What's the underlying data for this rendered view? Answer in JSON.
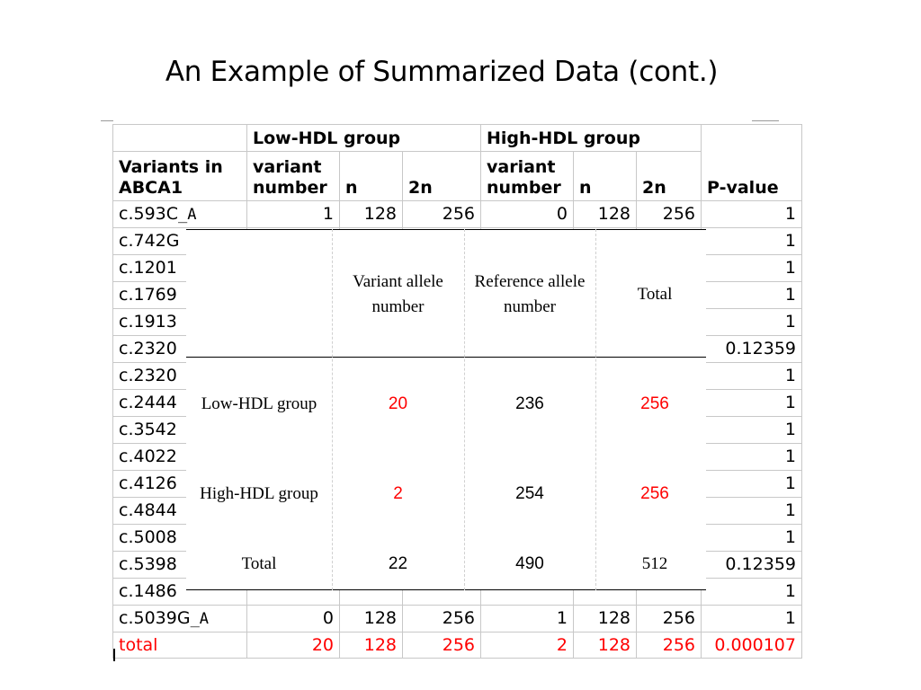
{
  "slide": {
    "title": "An Example of Summarized Data (cont.)"
  },
  "sheet": {
    "group_low": "Low-HDL group",
    "group_high": "High-HDL group",
    "col_variants": "Variants in ABCA1",
    "col_variant_number": "variant number",
    "col_n": "n",
    "col_2n": "2n",
    "col_pvalue": "P-value",
    "rows": [
      {
        "variant": "c.593C",
        "suffix": "_A",
        "low_vn": "1",
        "low_n": "128",
        "low_2n": "256",
        "high_vn": "0",
        "high_n": "128",
        "high_2n": "256",
        "p": "1"
      },
      {
        "variant": "c.742G",
        "suffix": "",
        "low_vn": "",
        "low_n": "",
        "low_2n": "",
        "high_vn": "",
        "high_n": "",
        "high_2n": "",
        "p": "1"
      },
      {
        "variant": "c.1201",
        "suffix": "",
        "low_vn": "",
        "low_n": "",
        "low_2n": "",
        "high_vn": "",
        "high_n": "",
        "high_2n": "",
        "p": "1"
      },
      {
        "variant": "c.1769",
        "suffix": "",
        "low_vn": "",
        "low_n": "",
        "low_2n": "",
        "high_vn": "",
        "high_n": "",
        "high_2n": "",
        "p": "1"
      },
      {
        "variant": "c.1913",
        "suffix": "",
        "low_vn": "",
        "low_n": "",
        "low_2n": "",
        "high_vn": "",
        "high_n": "",
        "high_2n": "",
        "p": "1"
      },
      {
        "variant": "c.2320",
        "suffix": "",
        "low_vn": "",
        "low_n": "",
        "low_2n": "",
        "high_vn": "",
        "high_n": "",
        "high_2n": "",
        "p": "0.12359"
      },
      {
        "variant": "c.2320",
        "suffix": "",
        "low_vn": "",
        "low_n": "",
        "low_2n": "",
        "high_vn": "",
        "high_n": "",
        "high_2n": "",
        "p": "1"
      },
      {
        "variant": "c.2444",
        "suffix": "",
        "low_vn": "",
        "low_n": "",
        "low_2n": "",
        "high_vn": "",
        "high_n": "",
        "high_2n": "",
        "p": "1"
      },
      {
        "variant": "c.3542",
        "suffix": "",
        "low_vn": "",
        "low_n": "",
        "low_2n": "",
        "high_vn": "",
        "high_n": "",
        "high_2n": "",
        "p": "1"
      },
      {
        "variant": "c.4022",
        "suffix": "",
        "low_vn": "",
        "low_n": "",
        "low_2n": "",
        "high_vn": "",
        "high_n": "",
        "high_2n": "",
        "p": "1"
      },
      {
        "variant": "c.4126",
        "suffix": "",
        "low_vn": "",
        "low_n": "",
        "low_2n": "",
        "high_vn": "",
        "high_n": "",
        "high_2n": "",
        "p": "1"
      },
      {
        "variant": "c.4844",
        "suffix": "",
        "low_vn": "",
        "low_n": "",
        "low_2n": "",
        "high_vn": "",
        "high_n": "",
        "high_2n": "",
        "p": "1"
      },
      {
        "variant": "c.5008",
        "suffix": "",
        "low_vn": "",
        "low_n": "",
        "low_2n": "",
        "high_vn": "",
        "high_n": "",
        "high_2n": "",
        "p": "1"
      },
      {
        "variant": "c.5398",
        "suffix": "",
        "low_vn": "",
        "low_n": "",
        "low_2n": "",
        "high_vn": "",
        "high_n": "",
        "high_2n": "",
        "p": "0.12359"
      },
      {
        "variant": "c.1486",
        "suffix": "",
        "low_vn": "",
        "low_n": "",
        "low_2n": "",
        "high_vn": "",
        "high_n": "",
        "high_2n": "",
        "p": "1"
      },
      {
        "variant": "c.5039G",
        "suffix": "_A",
        "low_vn": "0",
        "low_n": "128",
        "low_2n": "256",
        "high_vn": "1",
        "high_n": "128",
        "high_2n": "256",
        "p": "1"
      }
    ],
    "total": {
      "label": "total",
      "low_vn": "20",
      "low_n": "128",
      "low_2n": "256",
      "high_vn": "2",
      "high_n": "128",
      "high_2n": "256",
      "p": "0.000107"
    }
  },
  "overlay": {
    "col_variant": "Variant allele number",
    "col_reference": "Reference allele number",
    "col_total": "Total",
    "row_low": "Low-HDL group",
    "row_high": "High-HDL group",
    "row_total": "Total",
    "low_variant": "20",
    "low_reference": "236",
    "low_total": "256",
    "high_variant": "2",
    "high_reference": "254",
    "high_total": "256",
    "total_variant": "22",
    "total_reference": "490",
    "total_total": "512"
  },
  "colors": {
    "highlight": "#ff0000"
  }
}
